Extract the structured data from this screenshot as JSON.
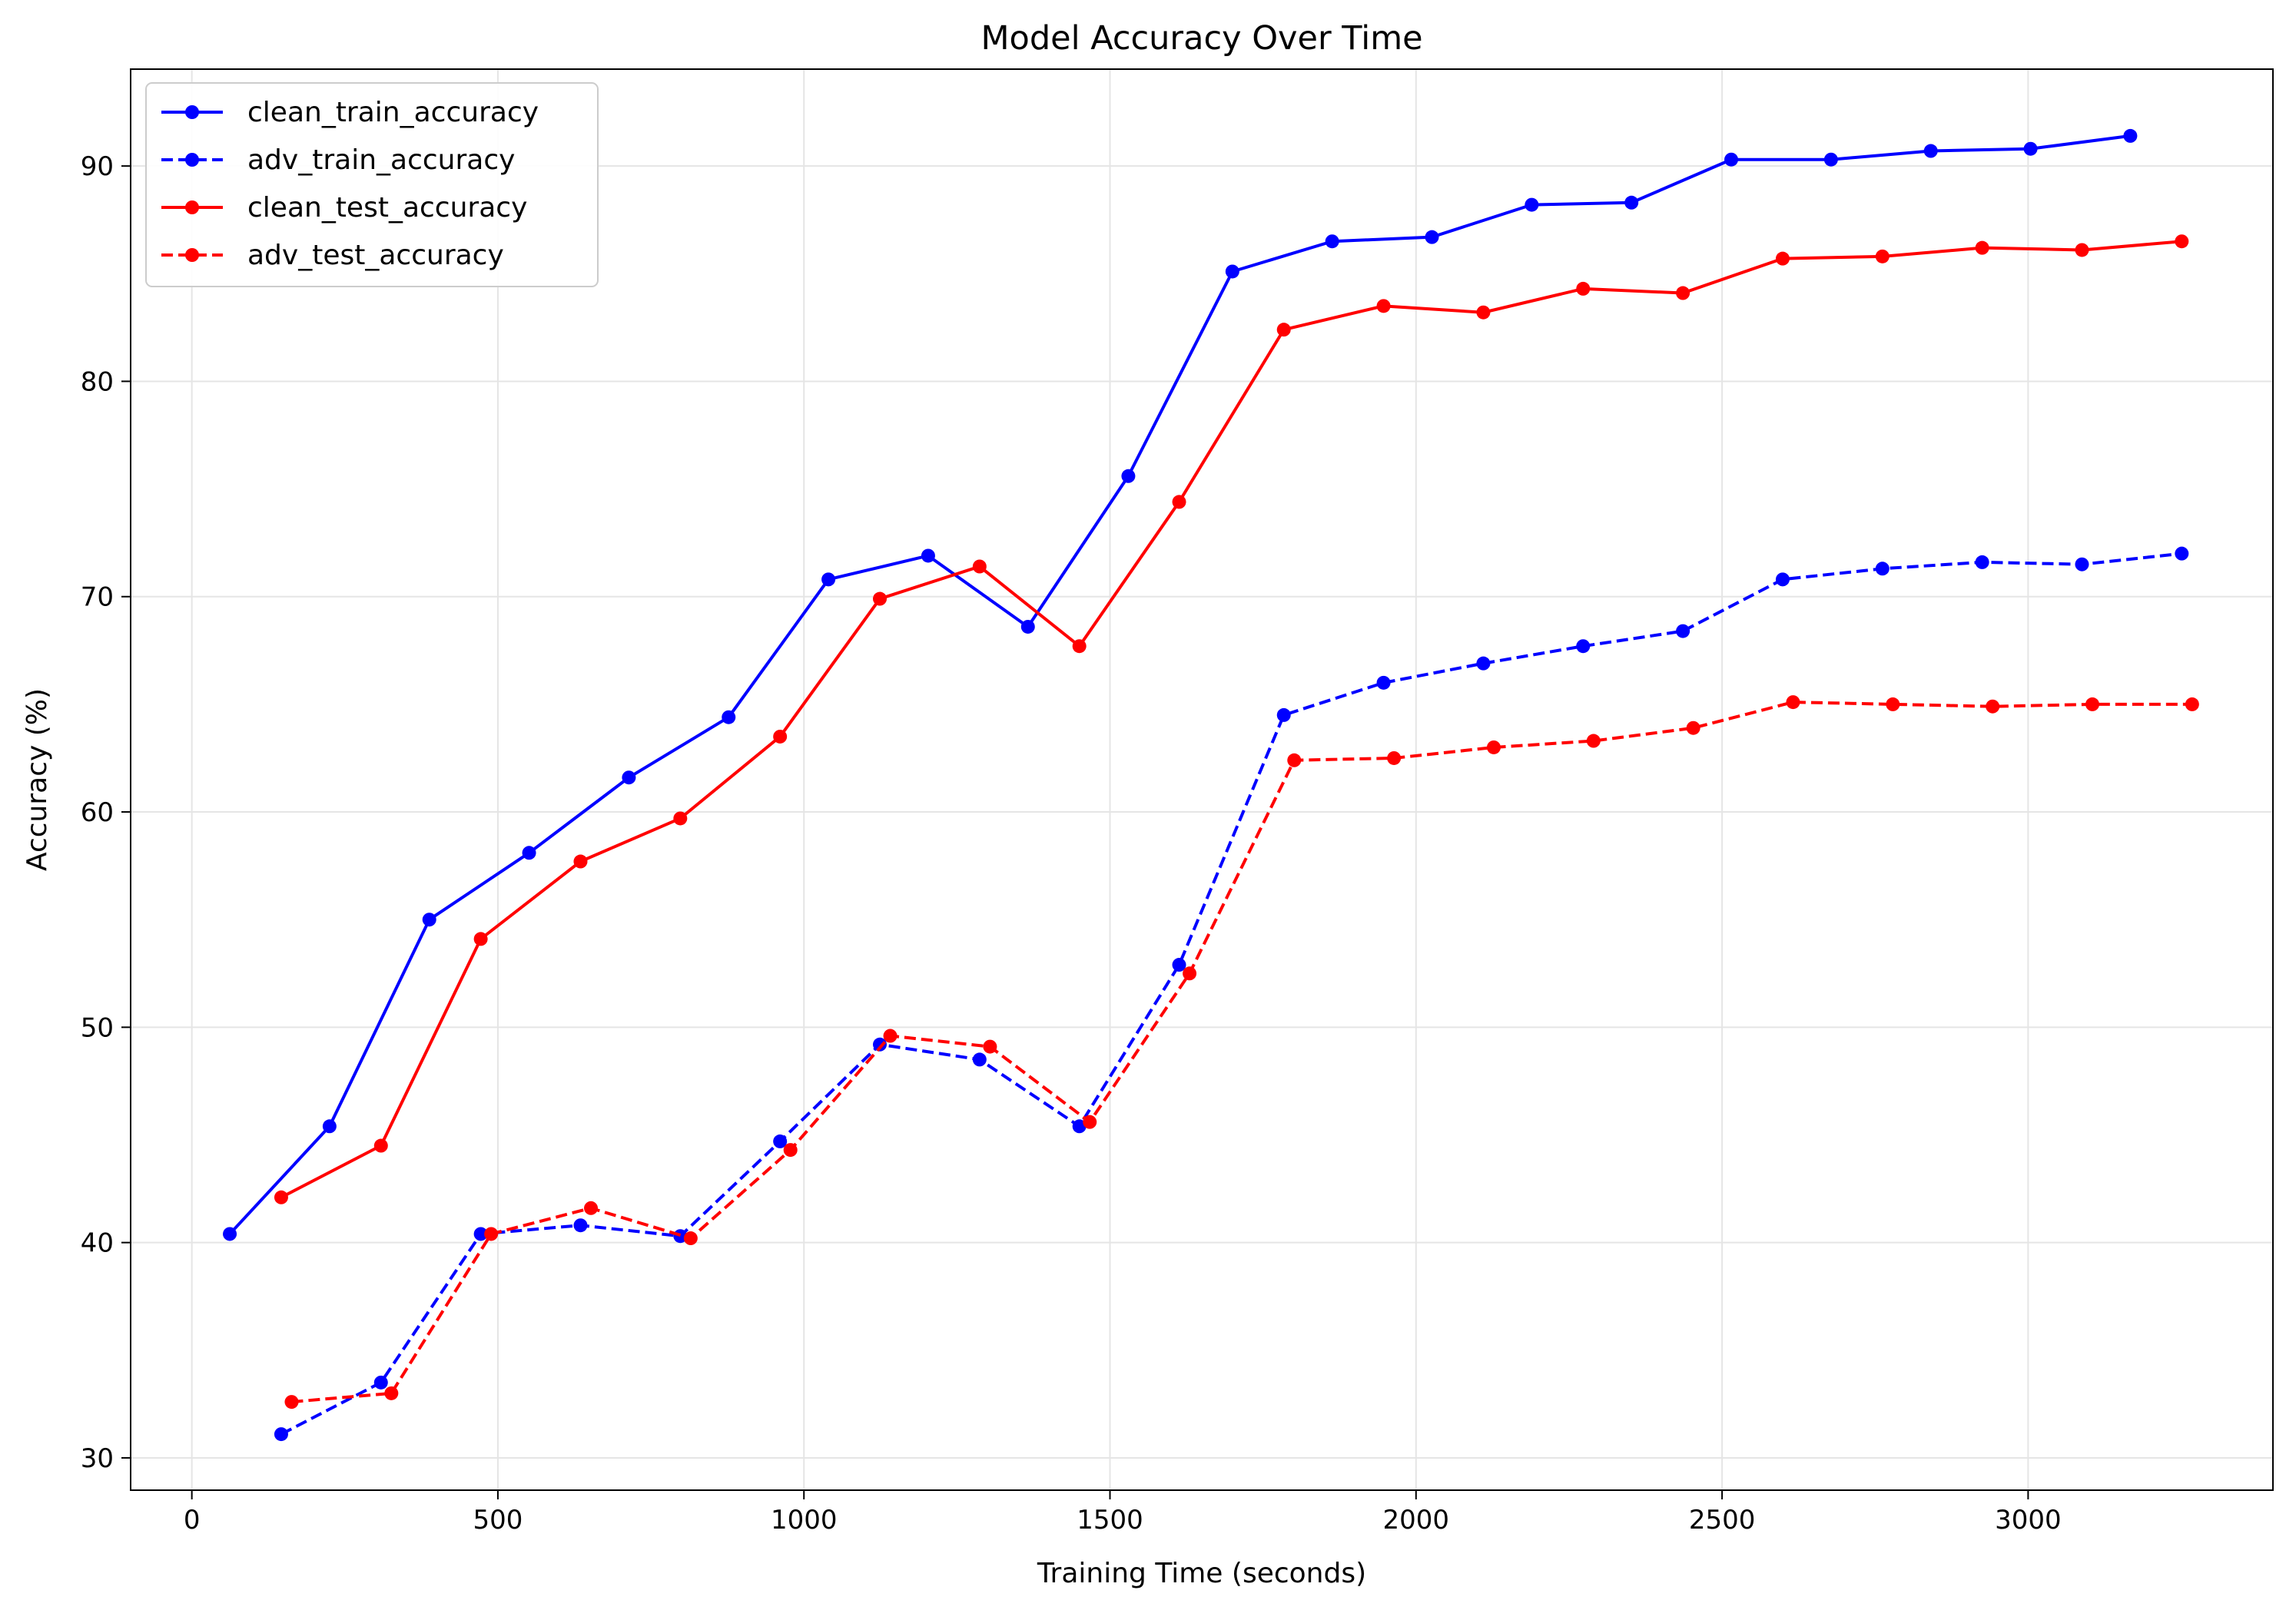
{
  "chart_data": {
    "type": "line",
    "title": "Model Accuracy Over Time",
    "xlabel": "Training Time (seconds)",
    "ylabel": "Accuracy (%)",
    "xlim": [
      -100,
      3400
    ],
    "ylim": [
      28.5,
      94.5
    ],
    "xticks": [
      0,
      500,
      1000,
      1500,
      2000,
      2500,
      3000
    ],
    "yticks": [
      30,
      40,
      50,
      60,
      70,
      80,
      90
    ],
    "grid": true,
    "legend_position": "top-left",
    "series": [
      {
        "name": "clean_train_accuracy",
        "color": "#0000ff",
        "linestyle": "solid",
        "x": [
          62,
          225,
          388,
          551,
          714,
          877,
          1040,
          1203,
          1366,
          1530,
          1700,
          1863,
          2026,
          2189,
          2352,
          2515,
          2678,
          2841,
          3004,
          3167
        ],
        "y": [
          40.4,
          45.4,
          55.0,
          58.1,
          61.6,
          64.4,
          70.8,
          71.9,
          68.6,
          75.6,
          85.1,
          86.5,
          86.7,
          88.2,
          88.3,
          90.3,
          90.3,
          90.7,
          90.8,
          91.4
        ]
      },
      {
        "name": "adv_train_accuracy",
        "color": "#0000ff",
        "linestyle": "dashed",
        "x": [
          146,
          309,
          472,
          635,
          798,
          961,
          1124,
          1287,
          1450,
          1613,
          1784,
          1947,
          2110,
          2273,
          2436,
          2599,
          2762,
          2925,
          3088,
          3251
        ],
        "y": [
          31.1,
          33.5,
          40.4,
          40.8,
          40.3,
          44.7,
          49.2,
          48.5,
          45.4,
          52.9,
          64.5,
          66.0,
          66.9,
          67.7,
          68.4,
          70.8,
          71.3,
          71.6,
          71.5,
          72.0
        ]
      },
      {
        "name": "clean_test_accuracy",
        "color": "#ff0000",
        "linestyle": "solid",
        "x": [
          146,
          309,
          472,
          635,
          798,
          961,
          1124,
          1287,
          1450,
          1613,
          1784,
          1947,
          2110,
          2273,
          2436,
          2599,
          2762,
          2925,
          3088,
          3251
        ],
        "y": [
          42.1,
          44.5,
          54.1,
          57.7,
          59.7,
          63.5,
          69.9,
          71.4,
          67.7,
          74.4,
          82.4,
          83.5,
          83.2,
          84.3,
          84.1,
          85.7,
          85.8,
          86.2,
          86.1,
          86.5
        ]
      },
      {
        "name": "adv_test_accuracy",
        "color": "#ff0000",
        "linestyle": "dashed",
        "x": [
          163,
          326,
          489,
          652,
          815,
          978,
          1141,
          1304,
          1467,
          1630,
          1801,
          1964,
          2127,
          2290,
          2453,
          2616,
          2779,
          2942,
          3105,
          3268
        ],
        "y": [
          32.6,
          33.0,
          40.4,
          41.6,
          40.2,
          44.3,
          49.6,
          49.1,
          45.6,
          52.5,
          62.4,
          62.5,
          63.0,
          63.3,
          63.9,
          65.1,
          65.0,
          64.9,
          65.0,
          65.0
        ]
      }
    ]
  }
}
